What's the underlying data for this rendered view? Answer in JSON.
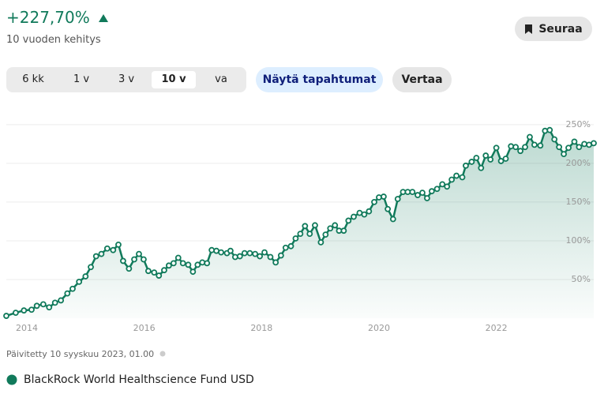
{
  "header": {
    "change": "+227,70%",
    "period": "10 vuoden kehitys"
  },
  "follow_button": "Seuraa",
  "periods": [
    "6 kk",
    "1 v",
    "3 v",
    "10 v",
    "va"
  ],
  "selected_period": 3,
  "events_button": "Näytä tapahtumat",
  "compare_button": "Vertaa",
  "updated": "Päivitetty 10 syyskuu 2023, 01.00",
  "chart_data": {
    "type": "line",
    "area": true,
    "grid": true,
    "x": [
      2013.65,
      2013.81,
      2013.95,
      2014.08,
      2014.17,
      2014.28,
      2014.38,
      2014.48,
      2014.58,
      2014.69,
      2014.78,
      2014.89,
      2015.0,
      2015.09,
      2015.18,
      2015.27,
      2015.37,
      2015.47,
      2015.56,
      2015.64,
      2015.74,
      2015.83,
      2015.91,
      2015.99,
      2016.07,
      2016.17,
      2016.25,
      2016.34,
      2016.42,
      2016.5,
      2016.58,
      2016.66,
      2016.75,
      2016.83,
      2016.91,
      2016.99,
      2017.07,
      2017.15,
      2017.23,
      2017.31,
      2017.41,
      2017.47,
      2017.55,
      2017.63,
      2017.71,
      2017.8,
      2017.89,
      2017.97,
      2018.05,
      2018.15,
      2018.24,
      2018.33,
      2018.41,
      2018.5,
      2018.58,
      2018.66,
      2018.74,
      2018.82,
      2018.91,
      2019.01,
      2019.09,
      2019.17,
      2019.25,
      2019.32,
      2019.4,
      2019.48,
      2019.57,
      2019.67,
      2019.75,
      2019.83,
      2019.92,
      2020.0,
      2020.08,
      2020.15,
      2020.24,
      2020.32,
      2020.41,
      2020.49,
      2020.57,
      2020.66,
      2020.74,
      2020.82,
      2020.9,
      2020.99,
      2021.08,
      2021.16,
      2021.24,
      2021.32,
      2021.42,
      2021.48,
      2021.58,
      2021.66,
      2021.74,
      2021.82,
      2021.9,
      2022.0,
      2022.08,
      2022.16,
      2022.25,
      2022.33,
      2022.41,
      2022.49,
      2022.57,
      2022.65,
      2022.75,
      2022.83,
      2022.91,
      2022.99,
      2023.07,
      2023.15,
      2023.23,
      2023.33,
      2023.41,
      2023.5,
      2023.58,
      2023.66
    ],
    "series": [
      {
        "name": "BlackRock World Healthscience Fund USD",
        "color": "#117a5b",
        "values": [
          3,
          7,
          10,
          11,
          16,
          18,
          14,
          20,
          23,
          32,
          38,
          47,
          54,
          66,
          80,
          83,
          90,
          88,
          95,
          74,
          64,
          76,
          83,
          76,
          61,
          59,
          55,
          62,
          68,
          71,
          78,
          71,
          69,
          60,
          69,
          72,
          71,
          88,
          87,
          85,
          84,
          87,
          79,
          80,
          84,
          84,
          83,
          80,
          85,
          79,
          72,
          81,
          91,
          93,
          103,
          109,
          119,
          109,
          120,
          98,
          108,
          116,
          120,
          113,
          113,
          126,
          131,
          136,
          134,
          138,
          150,
          156,
          157,
          141,
          128,
          154,
          163,
          163,
          163,
          159,
          162,
          155,
          164,
          167,
          173,
          170,
          179,
          184,
          182,
          197,
          202,
          207,
          194,
          210,
          205,
          220,
          203,
          206,
          222,
          221,
          216,
          221,
          234,
          224,
          223,
          242,
          243,
          231,
          221,
          212,
          220,
          228,
          221,
          225,
          224,
          226
        ]
      }
    ],
    "xlim": [
      2013.65,
      2023.66
    ],
    "ylim": [
      0,
      258
    ],
    "xticks": [
      2014,
      2016,
      2018,
      2020,
      2022
    ],
    "yticks": [
      {
        "value": 50,
        "label": "50%"
      },
      {
        "value": 100,
        "label": "100%"
      },
      {
        "value": 150,
        "label": "150%"
      },
      {
        "value": 200,
        "label": "200%"
      },
      {
        "value": 250,
        "label": "250%"
      }
    ]
  }
}
